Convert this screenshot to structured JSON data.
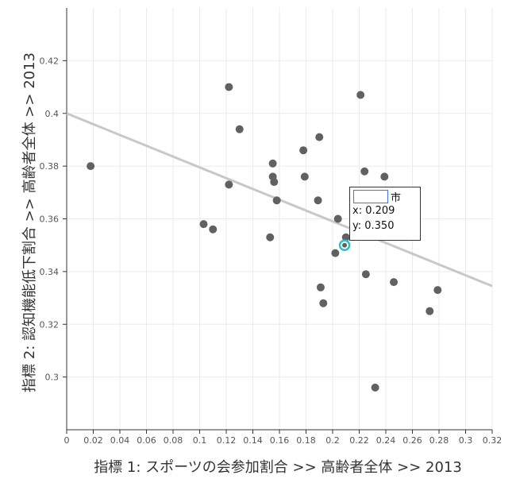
{
  "chart_data": {
    "type": "scatter",
    "xlabel": "指標 1:  スポーツの会参加割合 >> 高齢者全体 >> 2013",
    "ylabel": "指標 2:  認知機能低下割合 >> 高齢者全体 >> 2013",
    "xlim": [
      0,
      0.32
    ],
    "ylim": [
      0.28,
      0.44
    ],
    "x_ticks": [
      "0",
      "0.02",
      "0.04",
      "0.06",
      "0.08",
      "0.1",
      "0.12",
      "0.14",
      "0.16",
      "0.18",
      "0.2",
      "0.22",
      "0.24",
      "0.26",
      "0.28",
      "0.3",
      "0.32"
    ],
    "y_ticks": [
      "0.3",
      "0.32",
      "0.34",
      "0.36",
      "0.38",
      "0.4",
      "0.42"
    ],
    "grid": true,
    "points": [
      {
        "x": 0.018,
        "y": 0.38
      },
      {
        "x": 0.103,
        "y": 0.358
      },
      {
        "x": 0.11,
        "y": 0.356
      },
      {
        "x": 0.122,
        "y": 0.41
      },
      {
        "x": 0.122,
        "y": 0.373
      },
      {
        "x": 0.13,
        "y": 0.394
      },
      {
        "x": 0.153,
        "y": 0.353
      },
      {
        "x": 0.155,
        "y": 0.381
      },
      {
        "x": 0.155,
        "y": 0.376
      },
      {
        "x": 0.156,
        "y": 0.374
      },
      {
        "x": 0.158,
        "y": 0.367
      },
      {
        "x": 0.178,
        "y": 0.386
      },
      {
        "x": 0.179,
        "y": 0.376
      },
      {
        "x": 0.189,
        "y": 0.367
      },
      {
        "x": 0.19,
        "y": 0.391
      },
      {
        "x": 0.191,
        "y": 0.334
      },
      {
        "x": 0.193,
        "y": 0.328
      },
      {
        "x": 0.202,
        "y": 0.347
      },
      {
        "x": 0.204,
        "y": 0.36
      },
      {
        "x": 0.21,
        "y": 0.353
      },
      {
        "x": 0.221,
        "y": 0.407
      },
      {
        "x": 0.224,
        "y": 0.378
      },
      {
        "x": 0.225,
        "y": 0.339
      },
      {
        "x": 0.232,
        "y": 0.296
      },
      {
        "x": 0.239,
        "y": 0.376
      },
      {
        "x": 0.246,
        "y": 0.336
      },
      {
        "x": 0.273,
        "y": 0.325
      },
      {
        "x": 0.279,
        "y": 0.333
      }
    ],
    "highlight": {
      "x": 0.209,
      "y": 0.35
    },
    "trendline": {
      "x": [
        0,
        0.32
      ],
      "y": [
        0.4,
        0.3345
      ]
    },
    "colors": {
      "point": "#616161",
      "trendline": "#c8c8c8",
      "highlight": "#2bc4c4",
      "grid": "#ebebeb",
      "axis": "#333333"
    }
  },
  "tooltip": {
    "suffix": "市",
    "x_text": "x: 0.209",
    "y_text": "y: 0.350"
  }
}
